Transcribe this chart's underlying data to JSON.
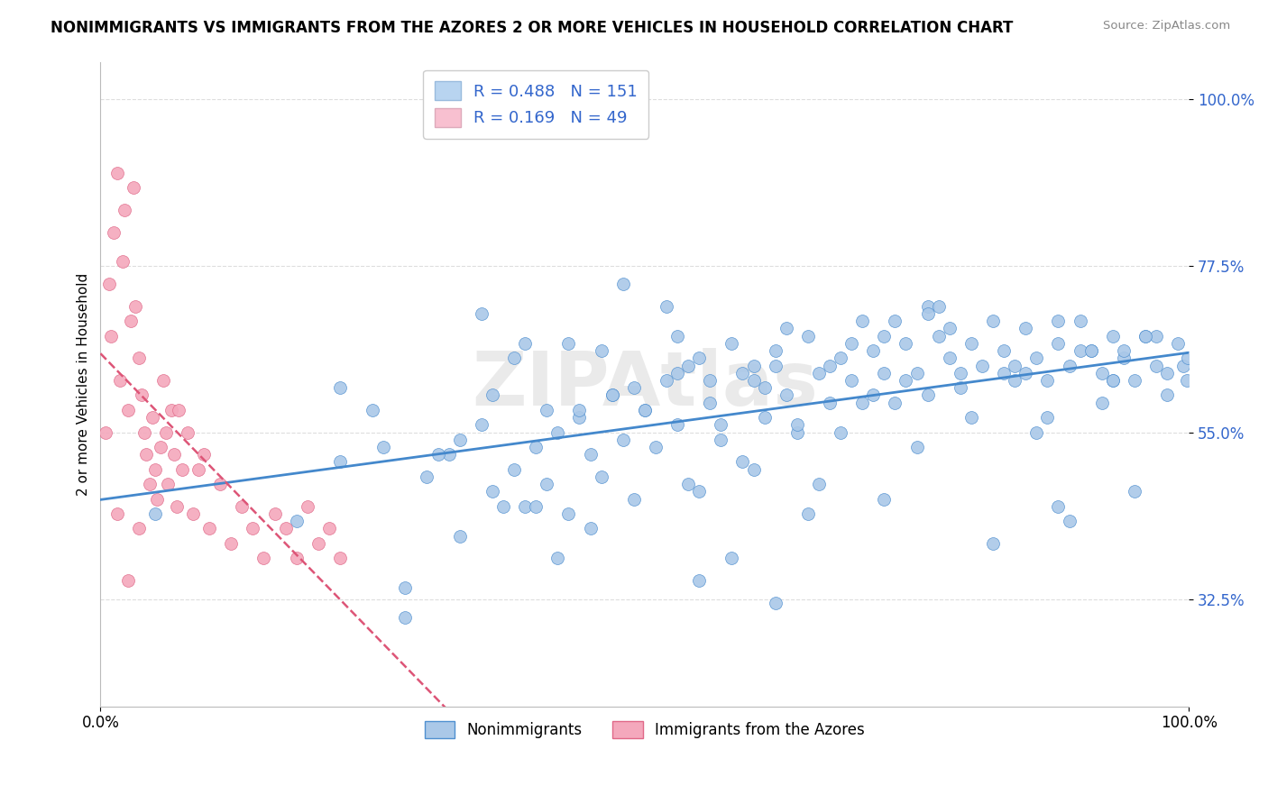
{
  "title": "NONIMMIGRANTS VS IMMIGRANTS FROM THE AZORES 2 OR MORE VEHICLES IN HOUSEHOLD CORRELATION CHART",
  "source": "Source: ZipAtlas.com",
  "ylabel": "2 or more Vehicles in Household",
  "xlim": [
    0.0,
    1.0
  ],
  "ylim": [
    0.18,
    1.05
  ],
  "ytick_labels": [
    "32.5%",
    "55.0%",
    "77.5%",
    "100.0%"
  ],
  "ytick_vals": [
    0.325,
    0.55,
    0.775,
    1.0
  ],
  "R_blue": 0.488,
  "N_blue": 151,
  "R_pink": 0.169,
  "N_pink": 49,
  "blue_face": "#aac8e8",
  "blue_edge": "#5090d0",
  "pink_face": "#f4a8bc",
  "pink_edge": "#e06888",
  "blue_line": "#4488cc",
  "pink_line": "#dd5577",
  "legend_box_blue": "#b8d4f0",
  "legend_box_pink": "#f8c0d0",
  "watermark": "ZIPAtlas",
  "blue_scatter_x": [
    0.05,
    0.18,
    0.22,
    0.25,
    0.28,
    0.3,
    0.32,
    0.33,
    0.35,
    0.36,
    0.38,
    0.39,
    0.4,
    0.41,
    0.42,
    0.43,
    0.44,
    0.45,
    0.46,
    0.47,
    0.48,
    0.49,
    0.5,
    0.51,
    0.52,
    0.53,
    0.54,
    0.55,
    0.56,
    0.57,
    0.58,
    0.59,
    0.6,
    0.61,
    0.62,
    0.63,
    0.64,
    0.65,
    0.66,
    0.67,
    0.68,
    0.69,
    0.7,
    0.71,
    0.72,
    0.73,
    0.74,
    0.75,
    0.76,
    0.77,
    0.78,
    0.79,
    0.8,
    0.81,
    0.82,
    0.83,
    0.84,
    0.85,
    0.86,
    0.87,
    0.88,
    0.89,
    0.9,
    0.91,
    0.92,
    0.93,
    0.94,
    0.95,
    0.96,
    0.97,
    0.98,
    0.99,
    0.995,
    0.998,
    0.999,
    0.55,
    0.6,
    0.65,
    0.42,
    0.38,
    0.45,
    0.52,
    0.58,
    0.68,
    0.72,
    0.48,
    0.53,
    0.62,
    0.71,
    0.8,
    0.85,
    0.9,
    0.76,
    0.66,
    0.57,
    0.35,
    0.4,
    0.33,
    0.28,
    0.22,
    0.5,
    0.55,
    0.7,
    0.75,
    0.82,
    0.88,
    0.93,
    0.97,
    0.44,
    0.61,
    0.67,
    0.73,
    0.79,
    0.86,
    0.91,
    0.96,
    0.49,
    0.64,
    0.69,
    0.83,
    0.87,
    0.94,
    0.59,
    0.74,
    0.78,
    0.84,
    0.89,
    0.95,
    0.36,
    0.41,
    0.46,
    0.56,
    0.63,
    0.31,
    0.43,
    0.54,
    0.76,
    0.92,
    0.98,
    0.37,
    0.47,
    0.53,
    0.62,
    0.77,
    0.93,
    0.26,
    0.39,
    0.6,
    0.72,
    0.88
  ],
  "blue_scatter_y": [
    0.44,
    0.43,
    0.51,
    0.58,
    0.34,
    0.49,
    0.52,
    0.41,
    0.56,
    0.47,
    0.5,
    0.45,
    0.53,
    0.48,
    0.55,
    0.44,
    0.57,
    0.52,
    0.49,
    0.6,
    0.54,
    0.46,
    0.58,
    0.53,
    0.62,
    0.56,
    0.48,
    0.65,
    0.59,
    0.54,
    0.67,
    0.51,
    0.62,
    0.57,
    0.64,
    0.6,
    0.55,
    0.68,
    0.63,
    0.59,
    0.65,
    0.62,
    0.7,
    0.66,
    0.63,
    0.59,
    0.67,
    0.63,
    0.6,
    0.68,
    0.65,
    0.61,
    0.67,
    0.64,
    0.7,
    0.66,
    0.62,
    0.69,
    0.65,
    0.62,
    0.67,
    0.64,
    0.7,
    0.66,
    0.63,
    0.68,
    0.65,
    0.62,
    0.68,
    0.64,
    0.6,
    0.67,
    0.64,
    0.62,
    0.65,
    0.35,
    0.5,
    0.44,
    0.38,
    0.65,
    0.42,
    0.72,
    0.38,
    0.55,
    0.46,
    0.75,
    0.68,
    0.32,
    0.6,
    0.57,
    0.63,
    0.66,
    0.72,
    0.48,
    0.56,
    0.71,
    0.45,
    0.54,
    0.3,
    0.61,
    0.58,
    0.47,
    0.59,
    0.53,
    0.4,
    0.7,
    0.62,
    0.68,
    0.58,
    0.61,
    0.64,
    0.7,
    0.63,
    0.55,
    0.66,
    0.68,
    0.61,
    0.56,
    0.67,
    0.63,
    0.57,
    0.66,
    0.63,
    0.62,
    0.69,
    0.64,
    0.43,
    0.47,
    0.6,
    0.58,
    0.66,
    0.62,
    0.69,
    0.52,
    0.67,
    0.64,
    0.71,
    0.59,
    0.63,
    0.45,
    0.6,
    0.63,
    0.66,
    0.72,
    0.62,
    0.53,
    0.67,
    0.64,
    0.68,
    0.45
  ],
  "pink_scatter_x": [
    0.005,
    0.008,
    0.01,
    0.012,
    0.015,
    0.018,
    0.02,
    0.022,
    0.025,
    0.028,
    0.03,
    0.032,
    0.035,
    0.038,
    0.04,
    0.042,
    0.045,
    0.048,
    0.05,
    0.052,
    0.055,
    0.058,
    0.06,
    0.062,
    0.065,
    0.068,
    0.07,
    0.072,
    0.075,
    0.08,
    0.085,
    0.09,
    0.095,
    0.1,
    0.11,
    0.12,
    0.13,
    0.14,
    0.15,
    0.16,
    0.17,
    0.18,
    0.19,
    0.2,
    0.21,
    0.22,
    0.015,
    0.025,
    0.035
  ],
  "pink_scatter_y": [
    0.55,
    0.75,
    0.68,
    0.82,
    0.9,
    0.62,
    0.78,
    0.85,
    0.58,
    0.7,
    0.88,
    0.72,
    0.65,
    0.6,
    0.55,
    0.52,
    0.48,
    0.57,
    0.5,
    0.46,
    0.53,
    0.62,
    0.55,
    0.48,
    0.58,
    0.52,
    0.45,
    0.58,
    0.5,
    0.55,
    0.44,
    0.5,
    0.52,
    0.42,
    0.48,
    0.4,
    0.45,
    0.42,
    0.38,
    0.44,
    0.42,
    0.38,
    0.45,
    0.4,
    0.42,
    0.38,
    0.44,
    0.35,
    0.42
  ]
}
